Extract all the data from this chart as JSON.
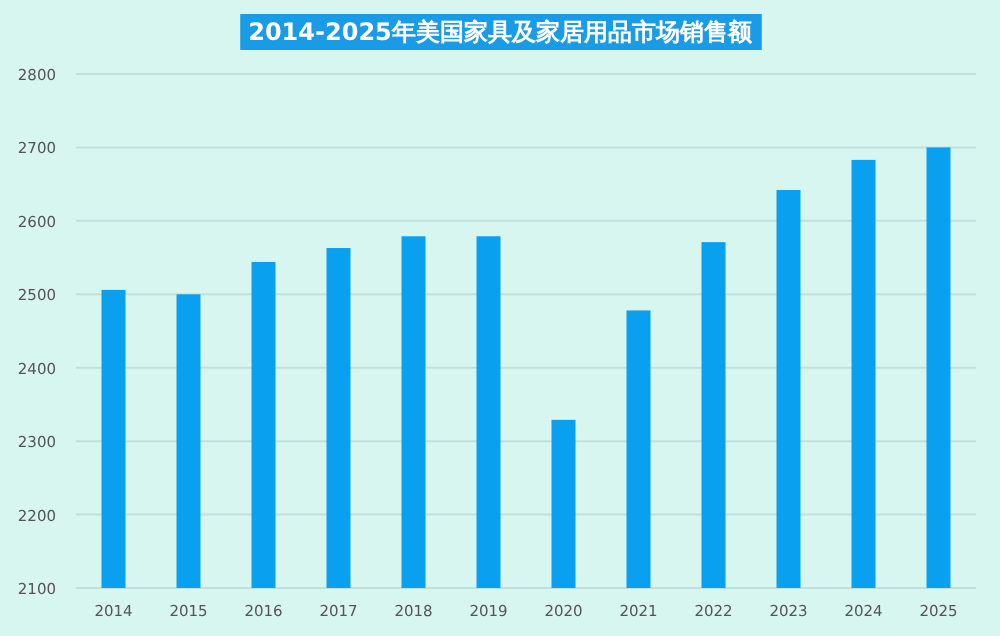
{
  "chart_data": {
    "type": "bar",
    "title": "2014-2025年美国家具及家居用品市场销售额",
    "categories": [
      "2014",
      "2015",
      "2016",
      "2017",
      "2018",
      "2019",
      "2020",
      "2021",
      "2022",
      "2023",
      "2024",
      "2025"
    ],
    "values": [
      2506,
      2500,
      2544,
      2563,
      2579,
      2579,
      2329,
      2478,
      2571,
      2642,
      2683,
      2700
    ],
    "color": "#0aa0f0",
    "ylim": [
      2100,
      2800
    ],
    "yticks": [
      2100,
      2200,
      2300,
      2400,
      2500,
      2600,
      2700,
      2800
    ],
    "grid": "y"
  }
}
